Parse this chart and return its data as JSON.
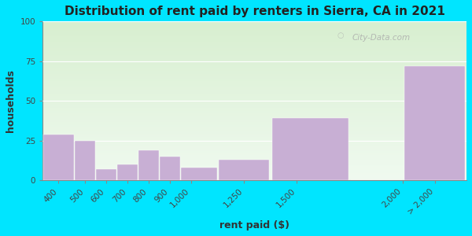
{
  "title": "Distribution of rent paid by renters in Sierra, CA in 2021",
  "xlabel": "rent paid ($)",
  "ylabel": "households",
  "bin_edges": [
    300,
    450,
    550,
    650,
    750,
    850,
    950,
    1125,
    1375,
    1750,
    2000,
    2300
  ],
  "tick_positions": [
    375,
    500,
    600,
    700,
    800,
    900,
    1000,
    1250,
    1500,
    2000,
    2150
  ],
  "tick_labels": [
    "400",
    "500",
    "600",
    "700",
    "800",
    "900",
    "1,000",
    "1,250",
    "1,500",
    "2,000",
    "> 2,000"
  ],
  "bar_values": [
    29,
    25,
    7,
    10,
    19,
    15,
    8,
    13,
    39,
    0,
    72
  ],
  "bar_color": "#c8afd4",
  "background_color": "#00e5ff",
  "plot_bg_color_top": "#d8efd0",
  "plot_bg_color_bottom": "#f0faf0",
  "ylim": [
    0,
    100
  ],
  "yticks": [
    0,
    25,
    50,
    75,
    100
  ],
  "title_fontsize": 11,
  "axis_label_fontsize": 9,
  "tick_fontsize": 7.5,
  "watermark": "City-Data.com"
}
